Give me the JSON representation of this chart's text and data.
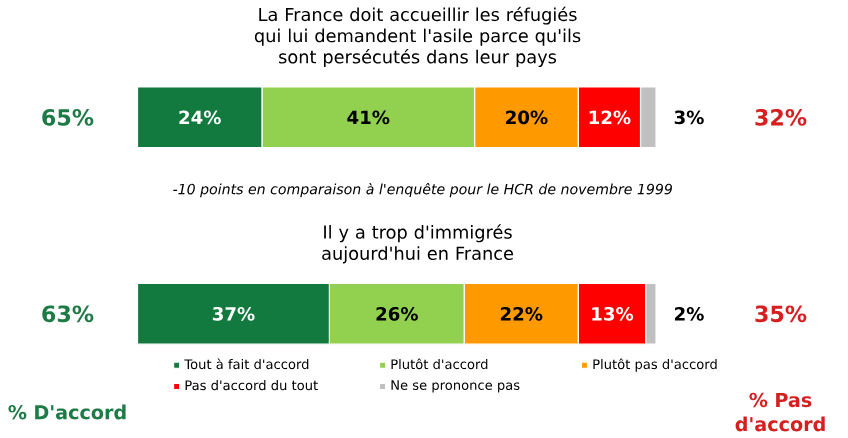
{
  "chart_data": {
    "type": "bar",
    "orientation": "horizontal",
    "stacked": true,
    "legend": "bottom",
    "categories": [
      "La France doit accueillir les réfugiés qui lui demandent l'asile parce qu'ils sont persécutés dans leur pays",
      "Il y a trop d'immigrés aujourd'hui en France"
    ],
    "series": [
      {
        "name": "Tout à fait d'accord",
        "color": "#127a3e",
        "values": [
          24,
          37
        ],
        "value_labels": [
          "24%",
          "37%"
        ]
      },
      {
        "name": "Plutôt d'accord",
        "color": "#92d050",
        "values": [
          41,
          26
        ],
        "value_labels": [
          "41%",
          "26%"
        ]
      },
      {
        "name": "Plutôt pas d'accord",
        "color": "#ff9900",
        "values": [
          20,
          22
        ],
        "value_labels": [
          "20%",
          "22%"
        ]
      },
      {
        "name": "Pas d'accord du tout",
        "color": "#ff0000",
        "values": [
          12,
          13
        ],
        "value_labels": [
          "12%",
          "13%"
        ]
      },
      {
        "name": "Ne se prononce pas",
        "color": "#c0c0c0",
        "values": [
          3,
          2
        ],
        "value_labels": [
          "3%",
          "2%"
        ]
      }
    ],
    "annotations": [
      "-10 points en comparaison à l'enquête pour le HCR de novembre 1999",
      "65%",
      "32%",
      "63%",
      "35%",
      "% D'accord",
      "% Pas d'accord"
    ]
  }
}
